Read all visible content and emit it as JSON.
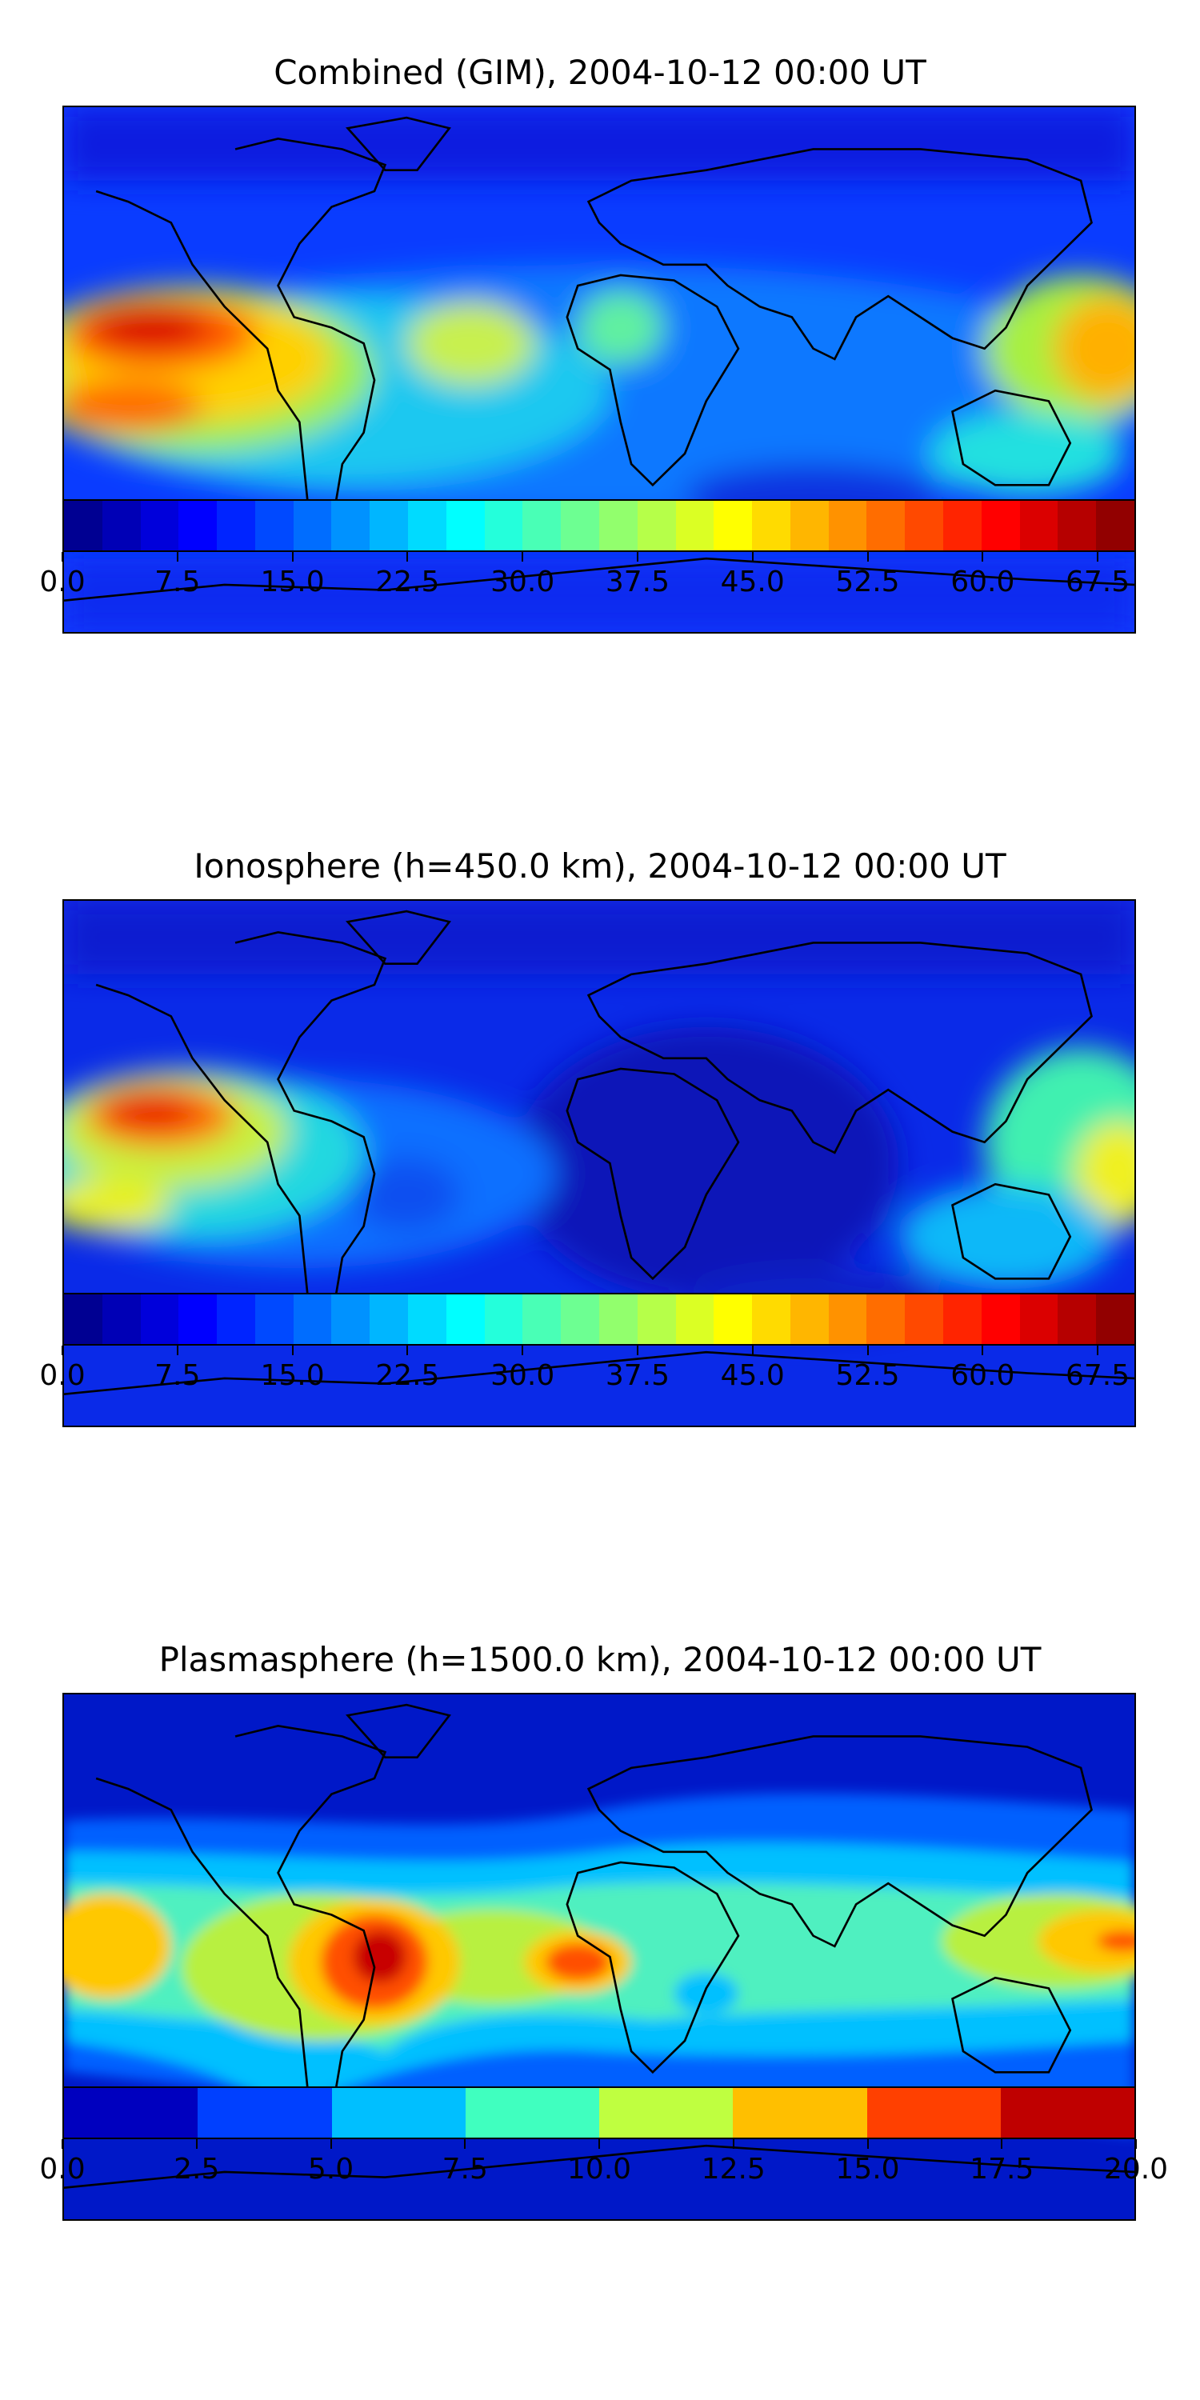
{
  "panels": [
    {
      "title": "Combined (GIM), 2004-10-12 00:00 UT",
      "colorbar": {
        "min": 0.0,
        "max": 70.0,
        "levels": 28,
        "tick_labels": [
          "0.0",
          "7.5",
          "15.0",
          "22.5",
          "30.0",
          "37.5",
          "45.0",
          "52.5",
          "60.0",
          "67.5"
        ],
        "tick_values": [
          0.0,
          7.5,
          15.0,
          22.5,
          30.0,
          37.5,
          45.0,
          52.5,
          60.0,
          67.5
        ]
      }
    },
    {
      "title": "Ionosphere  (h=450.0 km), 2004-10-12 00:00 UT",
      "colorbar": {
        "min": 0.0,
        "max": 70.0,
        "levels": 28,
        "tick_labels": [
          "0.0",
          "7.5",
          "15.0",
          "22.5",
          "30.0",
          "37.5",
          "45.0",
          "52.5",
          "60.0",
          "67.5"
        ],
        "tick_values": [
          0.0,
          7.5,
          15.0,
          22.5,
          30.0,
          37.5,
          45.0,
          52.5,
          60.0,
          67.5
        ]
      }
    },
    {
      "title": "Plasmasphere (h=1500.0 km), 2004-10-12 00:00 UT",
      "colorbar": {
        "min": 0.0,
        "max": 20.0,
        "levels": 8,
        "tick_labels": [
          "0.0",
          "2.5",
          "5.0",
          "7.5",
          "10.0",
          "12.5",
          "15.0",
          "17.5",
          "20.0"
        ],
        "tick_values": [
          0.0,
          2.5,
          5.0,
          7.5,
          10.0,
          12.5,
          15.0,
          17.5,
          20.0
        ]
      }
    }
  ],
  "colormap": "jet"
}
